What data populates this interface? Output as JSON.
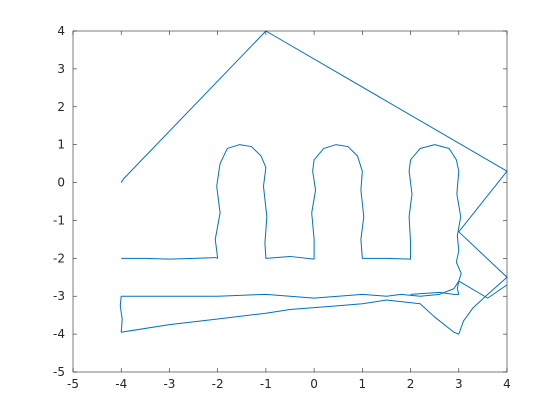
{
  "chart_data": {
    "type": "line",
    "title": "",
    "xlabel": "",
    "ylabel": "",
    "xlim": [
      -5,
      4
    ],
    "ylim": [
      -5,
      4
    ],
    "xticks": [
      -5,
      -4,
      -3,
      -2,
      -1,
      0,
      1,
      2,
      3,
      4
    ],
    "yticks": [
      -5,
      -4,
      -3,
      -2,
      -1,
      0,
      1,
      2,
      3,
      4
    ],
    "grid": false,
    "line_color": "#0072BD",
    "series": [
      {
        "x": [
          -4,
          -3.95,
          -1,
          4,
          3,
          4,
          3.6,
          3.3,
          3.1,
          3.0,
          2.9,
          2.5,
          2.2,
          1.5,
          1.0,
          0.5,
          -0.5,
          -1.0,
          -2.0,
          -3.0,
          -4.0,
          -3.98,
          -4.02,
          -4.0,
          -2.0,
          -1.0,
          0.0,
          1.0,
          1.5,
          1.8,
          2.2,
          2.6,
          2.9,
          3.0,
          3.6,
          4.0
        ],
        "y": [
          0,
          0.1,
          4,
          0.3,
          -1.3,
          -2.5,
          -2.95,
          -3.3,
          -3.65,
          -4.0,
          -3.95,
          -3.55,
          -3.2,
          -3.1,
          -3.2,
          -3.25,
          -3.35,
          -3.45,
          -3.6,
          -3.75,
          -3.95,
          -3.6,
          -3.25,
          -3.0,
          -3.0,
          -2.95,
          -3.05,
          -2.95,
          -3.0,
          -2.95,
          -3.0,
          -2.95,
          -2.8,
          -2.6,
          -3.05,
          -2.7
        ]
      },
      {
        "x": [
          -4.0,
          -3.5,
          -3.0,
          -2.5,
          -2.05,
          -2.0,
          -2.05,
          -1.95,
          -2.02,
          -1.95,
          -1.8,
          -1.55,
          -1.3,
          -1.1,
          -1.0,
          -1.05,
          -0.98,
          -1.02,
          -1.0,
          -1.0,
          -0.5,
          0.0,
          0.0,
          -0.05,
          0.03,
          -0.03,
          0.0,
          0.2,
          0.45,
          0.7,
          0.9,
          1.0,
          0.97,
          1.03,
          0.97,
          1.0,
          1.0,
          1.5,
          2.0,
          2.0,
          1.97,
          2.03,
          1.97,
          2.0,
          2.2,
          2.5,
          2.8,
          2.95,
          3.0,
          2.96,
          3.04,
          2.97,
          3.0,
          2.95,
          3.05,
          3.0,
          2.97,
          3.0,
          2.9,
          2.6,
          2.0
        ],
        "y": [
          -2.0,
          -2.0,
          -2.02,
          -2.0,
          -1.98,
          -2.0,
          -1.5,
          -0.8,
          -0.1,
          0.5,
          0.9,
          1.0,
          0.95,
          0.7,
          0.4,
          -0.1,
          -0.9,
          -1.6,
          -2.0,
          -2.0,
          -1.95,
          -2.02,
          -1.5,
          -0.8,
          -0.2,
          0.3,
          0.6,
          0.9,
          1.0,
          0.95,
          0.7,
          0.3,
          -0.2,
          -0.9,
          -1.5,
          -2.0,
          -2.0,
          -2.0,
          -2.02,
          -1.6,
          -0.9,
          -0.3,
          0.3,
          0.6,
          0.9,
          1.0,
          0.9,
          0.6,
          0.3,
          -0.3,
          -0.9,
          -1.4,
          -1.8,
          -2.1,
          -2.4,
          -2.6,
          -2.8,
          -2.95,
          -2.95,
          -2.9,
          -2.95
        ]
      }
    ]
  }
}
